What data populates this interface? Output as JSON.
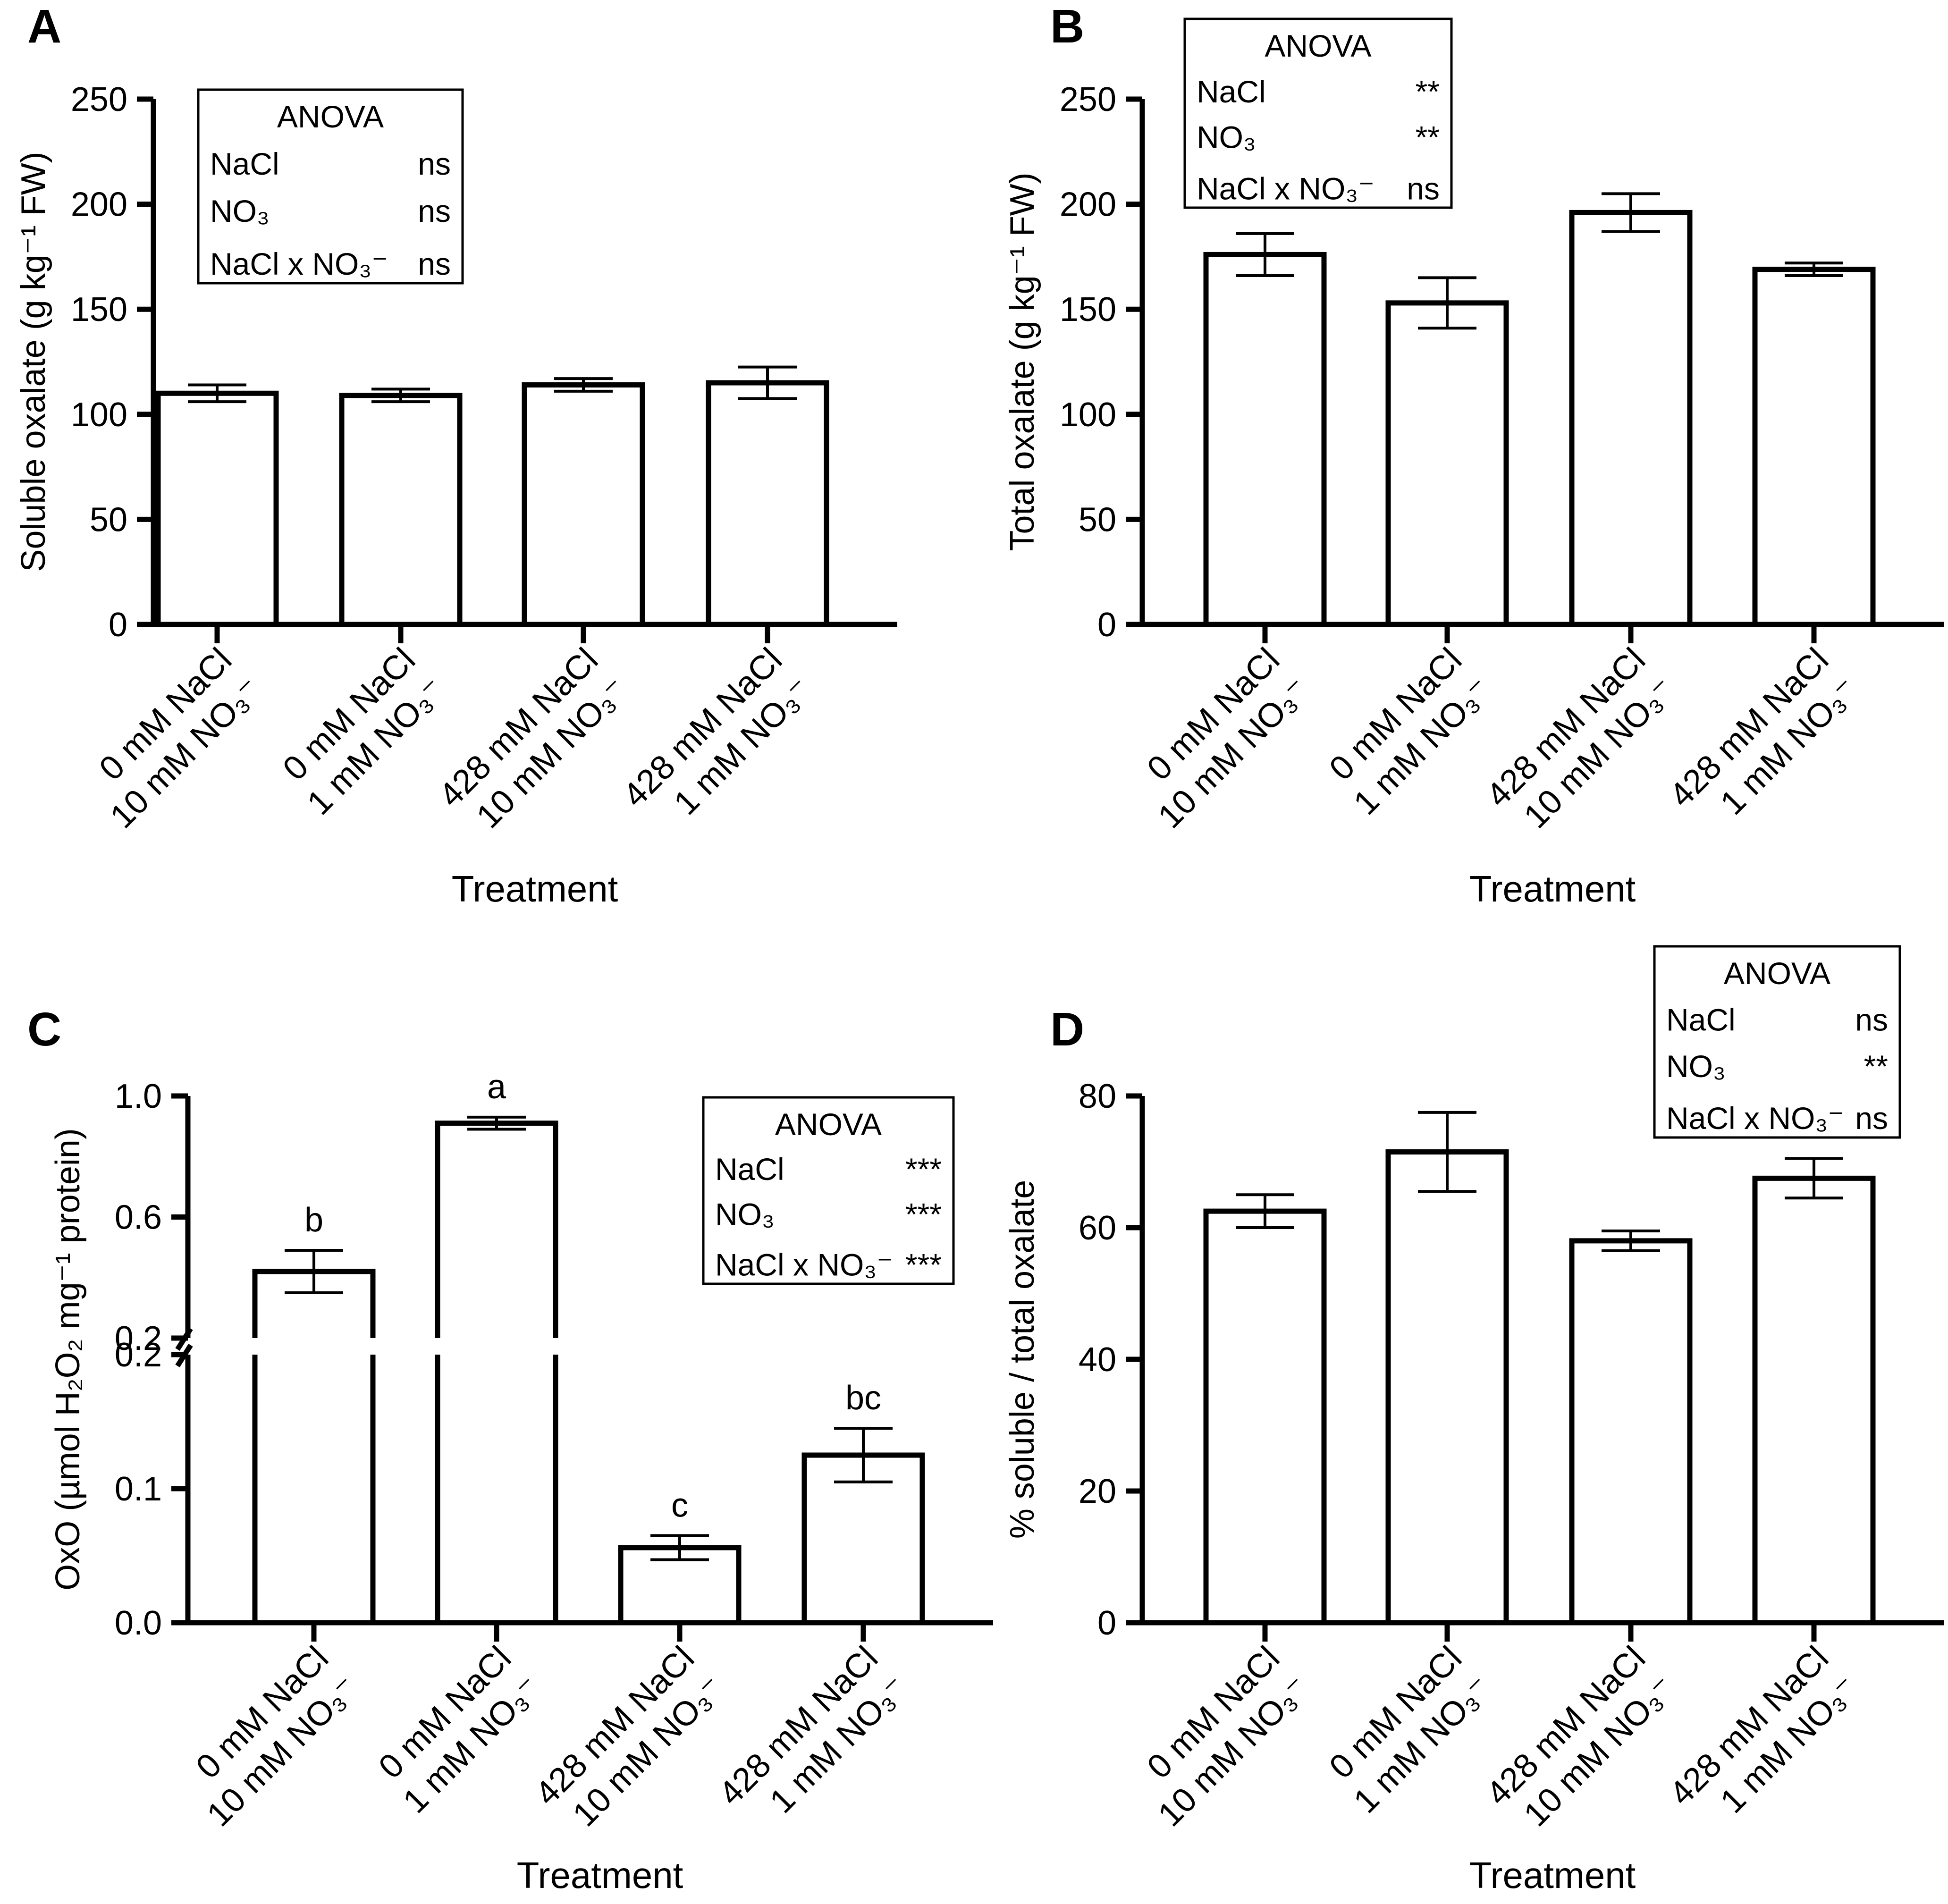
{
  "chart_data": [
    {
      "panel": "A",
      "type": "bar",
      "ylabel": "Soluble oxalate (g kg⁻¹ FW)",
      "xlabel": "Treatment",
      "ylim": [
        0,
        250
      ],
      "yticks": [
        0,
        50,
        100,
        150,
        200,
        250
      ],
      "categories": [
        [
          "0 mM NaCl",
          "10 mM NO₃⁻"
        ],
        [
          "0 mM NaCl",
          "1 mM NO₃⁻"
        ],
        [
          "428 mM NaCl",
          "10 mM NO₃⁻"
        ],
        [
          "428 mM NaCl",
          "1 mM NO₃⁻"
        ]
      ],
      "values": [
        110,
        109,
        114,
        115
      ],
      "errors": [
        4,
        3,
        3,
        7.5
      ],
      "letters": [],
      "anova": {
        "title": "ANOVA",
        "rows": [
          [
            "NaCl",
            "ns"
          ],
          [
            "NO₃",
            "ns"
          ],
          [
            "NaCl x NO₃⁻",
            "ns"
          ]
        ]
      }
    },
    {
      "panel": "B",
      "type": "bar",
      "ylabel": "Total oxalate (g kg⁻¹ FW)",
      "xlabel": "Treatment",
      "ylim": [
        0,
        250
      ],
      "yticks": [
        0,
        50,
        100,
        150,
        200,
        250
      ],
      "categories": [
        [
          "0 mM NaCl",
          "10 mM NO₃⁻"
        ],
        [
          "0 mM NaCl",
          "1 mM NO₃⁻"
        ],
        [
          "428 mM NaCl",
          "10 mM NO₃⁻"
        ],
        [
          "428 mM NaCl",
          "1 mM NO₃⁻"
        ]
      ],
      "values": [
        176,
        153,
        196,
        169
      ],
      "errors": [
        10,
        12,
        9,
        3
      ],
      "letters": [],
      "anova": {
        "title": "ANOVA",
        "rows": [
          [
            "NaCl",
            "**"
          ],
          [
            "NO₃",
            "**"
          ],
          [
            "NaCl x NO₃⁻",
            "ns"
          ]
        ]
      }
    },
    {
      "panel": "C",
      "type": "bar",
      "ylabel": "OxO (µmol H₂O₂ mg⁻¹ protein)",
      "xlabel": "Treatment",
      "axis_break": {
        "lower": [
          0,
          0.2
        ],
        "upper": [
          0.2,
          1.0
        ]
      },
      "lower_ticks": [
        "0.0",
        "0.1",
        "0.2"
      ],
      "upper_ticks": [
        "0.2",
        "0.6",
        "1.0"
      ],
      "categories": [
        [
          "0 mM NaCl",
          "10 mM NO₃⁻"
        ],
        [
          "0 mM NaCl",
          "1 mM NO₃⁻"
        ],
        [
          "428 mM NaCl",
          "10 mM NO₃⁻"
        ],
        [
          "428 mM NaCl",
          "1 mM NO₃⁻"
        ]
      ],
      "values": [
        0.42,
        0.91,
        0.056,
        0.125
      ],
      "errors": [
        0.07,
        0.02,
        0.009,
        0.02
      ],
      "letters": [
        "b",
        "a",
        "c",
        "bc"
      ],
      "anova": {
        "title": "ANOVA",
        "rows": [
          [
            "NaCl",
            "***"
          ],
          [
            "NO₃",
            "***"
          ],
          [
            "NaCl x NO₃⁻",
            "***"
          ]
        ]
      }
    },
    {
      "panel": "D",
      "type": "bar",
      "ylabel": "% soluble / total oxalate",
      "xlabel": "Treatment",
      "ylim": [
        0,
        80
      ],
      "yticks": [
        0,
        20,
        40,
        60,
        80
      ],
      "categories": [
        [
          "0 mM NaCl",
          "10 mM NO₃⁻"
        ],
        [
          "0 mM NaCl",
          "1 mM NO₃⁻"
        ],
        [
          "428 mM NaCl",
          "10 mM NO₃⁻"
        ],
        [
          "428 mM NaCl",
          "1 mM NO₃⁻"
        ]
      ],
      "values": [
        62.5,
        71.5,
        58,
        67.5
      ],
      "errors": [
        2.5,
        6,
        1.5,
        3
      ],
      "letters": [],
      "anova": {
        "title": "ANOVA",
        "rows": [
          [
            "NaCl",
            "ns"
          ],
          [
            "NO₃",
            "**"
          ],
          [
            "NaCl x NO₃⁻",
            "ns"
          ]
        ]
      }
    }
  ]
}
